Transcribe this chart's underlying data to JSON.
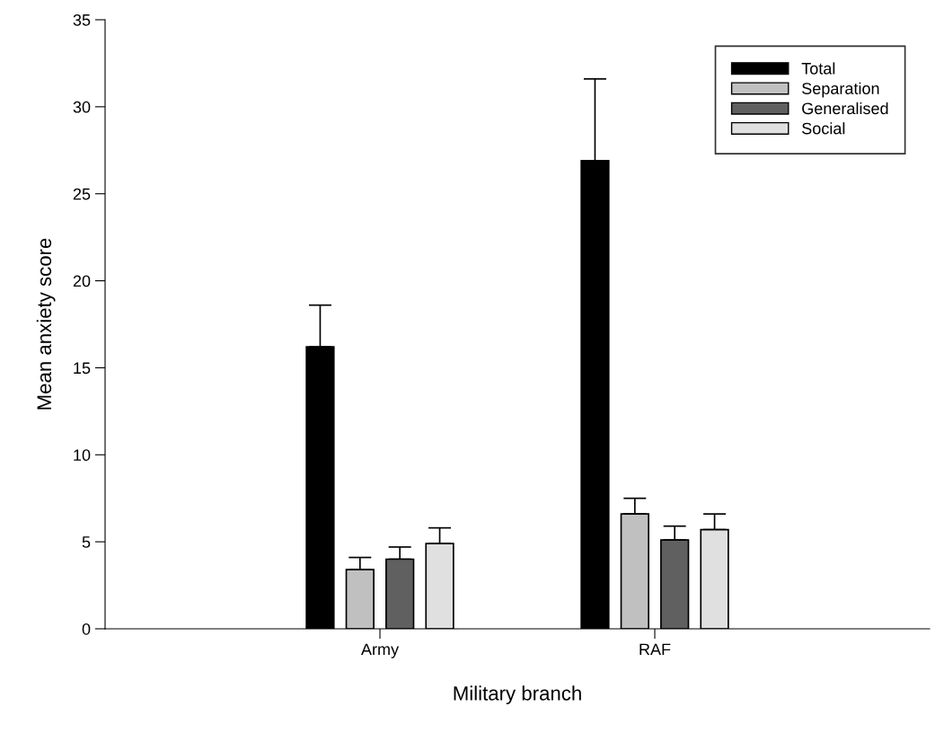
{
  "chart_data": {
    "type": "bar",
    "xlabel": "Military branch",
    "ylabel": "Mean anxiety score",
    "categories": [
      "Army",
      "RAF"
    ],
    "series": [
      {
        "name": "Total",
        "color": "#000000",
        "values": [
          16.2,
          26.9
        ],
        "errors": [
          [
            16.2,
            18.6
          ],
          [
            26.9,
            31.6
          ]
        ]
      },
      {
        "name": "Separation",
        "color": "#c0c0c0",
        "values": [
          3.4,
          6.6
        ],
        "errors": [
          [
            3.4,
            4.1
          ],
          [
            6.6,
            7.5
          ]
        ]
      },
      {
        "name": "Generalised",
        "color": "#606060",
        "values": [
          4.0,
          5.1
        ],
        "errors": [
          [
            4.0,
            4.7
          ],
          [
            5.1,
            5.9
          ]
        ]
      },
      {
        "name": "Social",
        "color": "#e0e0e0",
        "values": [
          4.9,
          5.7
        ],
        "errors": [
          [
            4.9,
            5.8
          ],
          [
            5.7,
            6.6
          ]
        ]
      }
    ],
    "ylim": [
      0,
      35
    ],
    "yticks": [
      0,
      5,
      10,
      15,
      20,
      25,
      30,
      35
    ],
    "grid": false,
    "legend": "top right"
  }
}
